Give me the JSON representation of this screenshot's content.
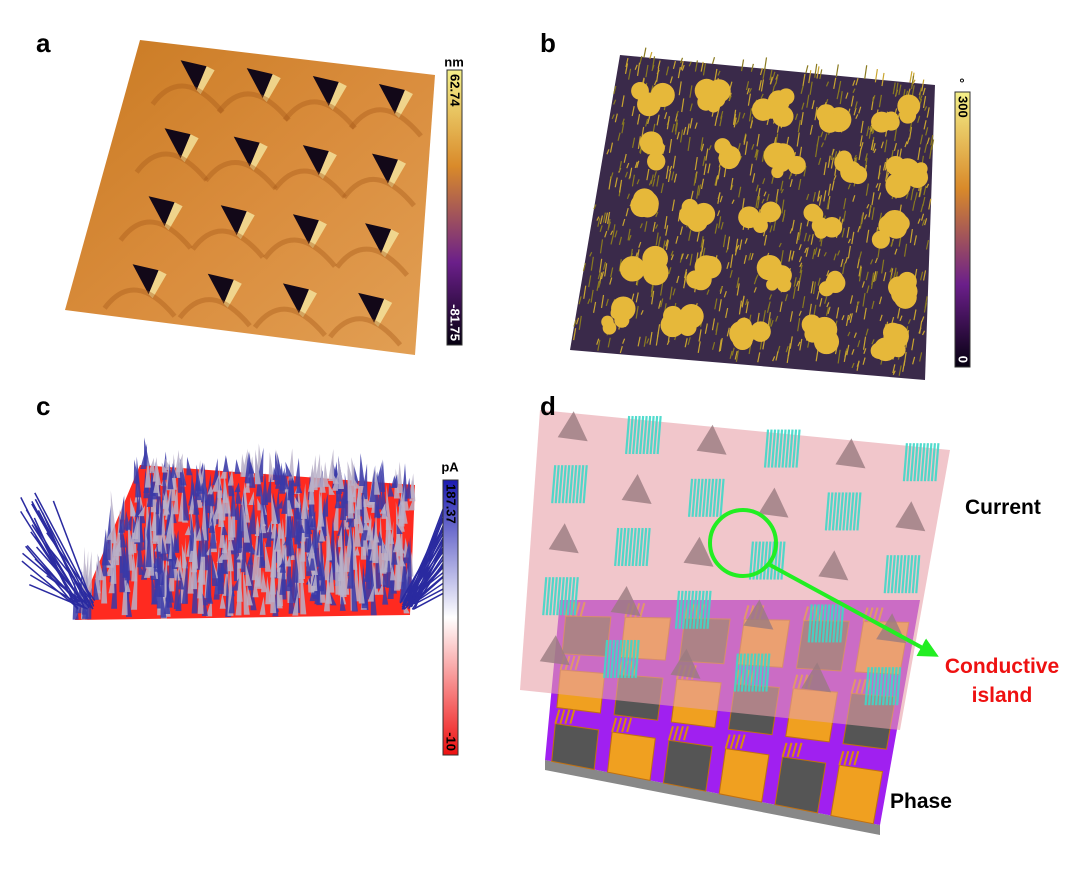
{
  "panels": [
    {
      "label": "a",
      "colorbar": {
        "unit": "nm",
        "max": 62.74,
        "min": -81.75
      }
    },
    {
      "label": "b",
      "colorbar": {
        "unit": "°",
        "max": 300,
        "min": 0
      }
    },
    {
      "label": "c",
      "colorbar": {
        "unit": "pA",
        "max": 187.37,
        "min": -10
      }
    },
    {
      "label": "d",
      "annotations": {
        "current": "Current",
        "island": [
          "Conductive",
          "island"
        ],
        "phase": "Phase"
      }
    }
  ]
}
